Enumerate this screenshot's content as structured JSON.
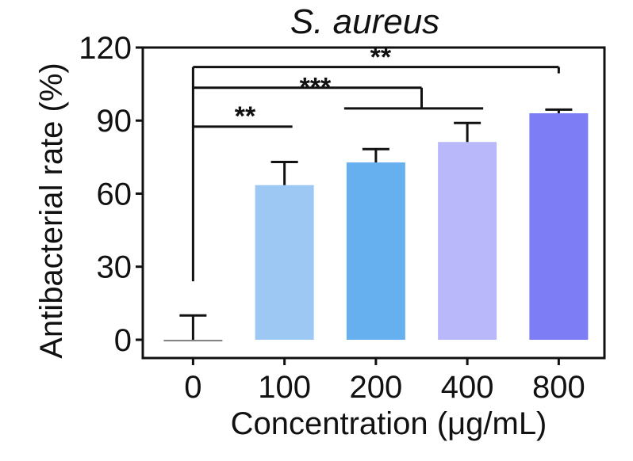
{
  "chart_data": {
    "type": "bar",
    "title": "S. aureus",
    "xlabel": "Concentration (μg/mL)",
    "ylabel": "Antibacterial rate (%)",
    "ylim": [
      -7.5,
      120
    ],
    "yticks": [
      0,
      30,
      60,
      90,
      120
    ],
    "categories": [
      "0",
      "100",
      "200",
      "400",
      "800"
    ],
    "values": [
      0,
      63.5,
      72.8,
      81.2,
      93.0
    ],
    "errors": [
      10.0,
      9.5,
      5.5,
      7.8,
      1.5
    ],
    "colors": [
      "#808080",
      "#9ec8f4",
      "#67b0f0",
      "#b8b8fb",
      "#7d7ef5"
    ],
    "significance": [
      {
        "from": "0",
        "to": "100",
        "label": "**"
      },
      {
        "from": "0",
        "to": "800",
        "label": "**"
      },
      {
        "from": "0",
        "to": "200 / 400",
        "label": "***"
      }
    ]
  }
}
